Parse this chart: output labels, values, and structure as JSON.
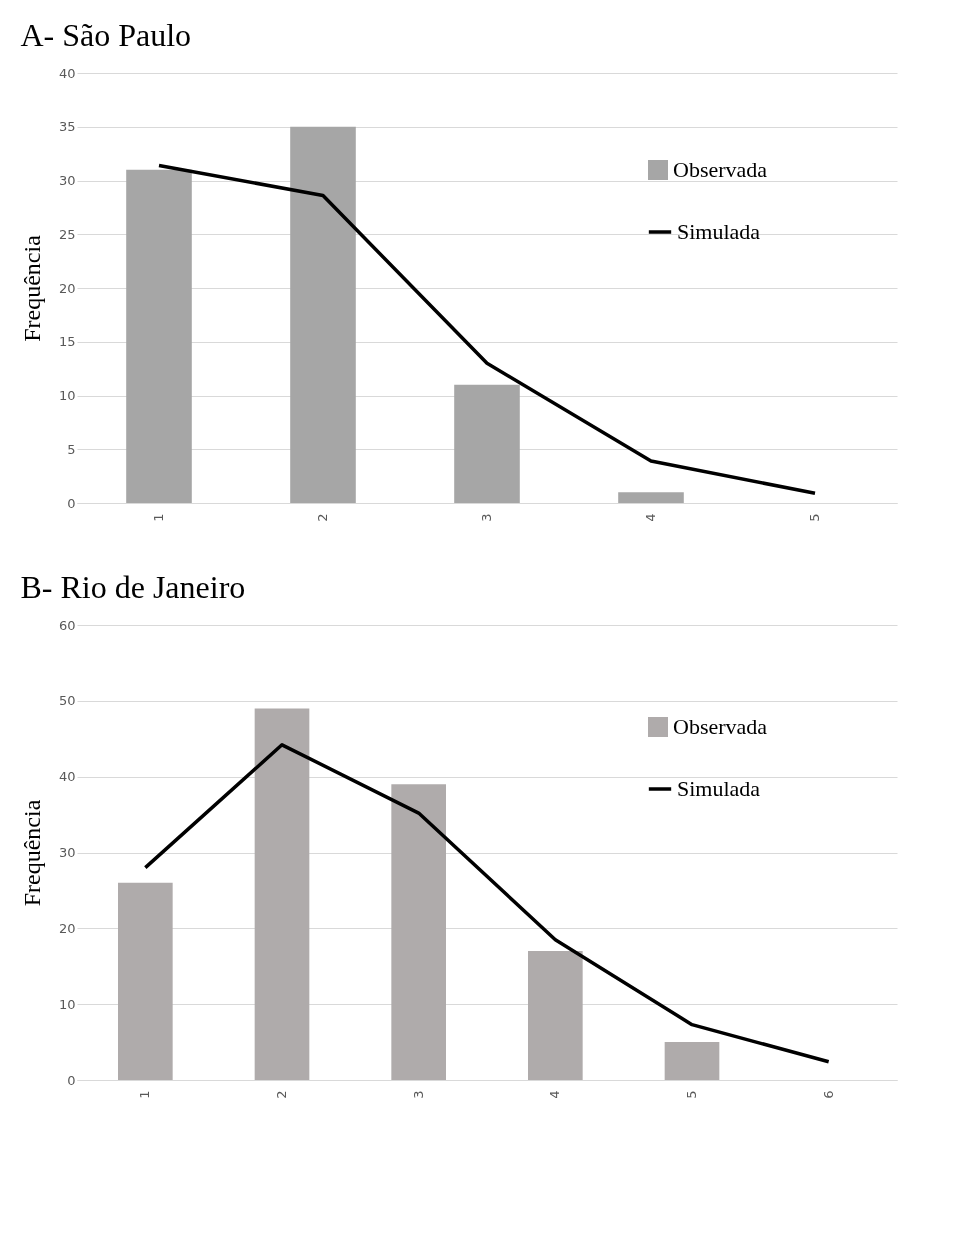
{
  "chart_data": [
    {
      "type": "bar",
      "title": "A- São Paulo",
      "ylabel": "Frequência",
      "categories": [
        "1",
        "2",
        "3",
        "4",
        "5"
      ],
      "series": [
        {
          "name": "Observada",
          "color": "#a6a6a6",
          "values": [
            31,
            35,
            11,
            1,
            null
          ]
        },
        {
          "name": "Simulada",
          "type": "line",
          "color": "#000000",
          "values": [
            31.4,
            28.6,
            13,
            3.9,
            0.9
          ]
        }
      ],
      "ylim": [
        0,
        40
      ],
      "yticks": [
        0,
        5,
        10,
        15,
        20,
        25,
        30,
        35,
        40
      ],
      "grid": "y",
      "legend": "top right"
    },
    {
      "type": "bar",
      "title": "B- Rio de Janeiro",
      "ylabel": "Frequência",
      "categories": [
        "1",
        "2",
        "3",
        "4",
        "5",
        "6"
      ],
      "series": [
        {
          "name": "Observada",
          "color": "#afabab",
          "values": [
            26,
            49,
            39,
            17,
            5,
            null
          ]
        },
        {
          "name": "Simulada",
          "type": "line",
          "color": "#000000",
          "values": [
            28,
            44.2,
            35.2,
            18.5,
            7.3,
            2.4
          ]
        }
      ],
      "ylim": [
        0,
        60
      ],
      "yticks": [
        0,
        10,
        20,
        30,
        40,
        50,
        60
      ],
      "grid": "y",
      "legend": "top right"
    }
  ]
}
